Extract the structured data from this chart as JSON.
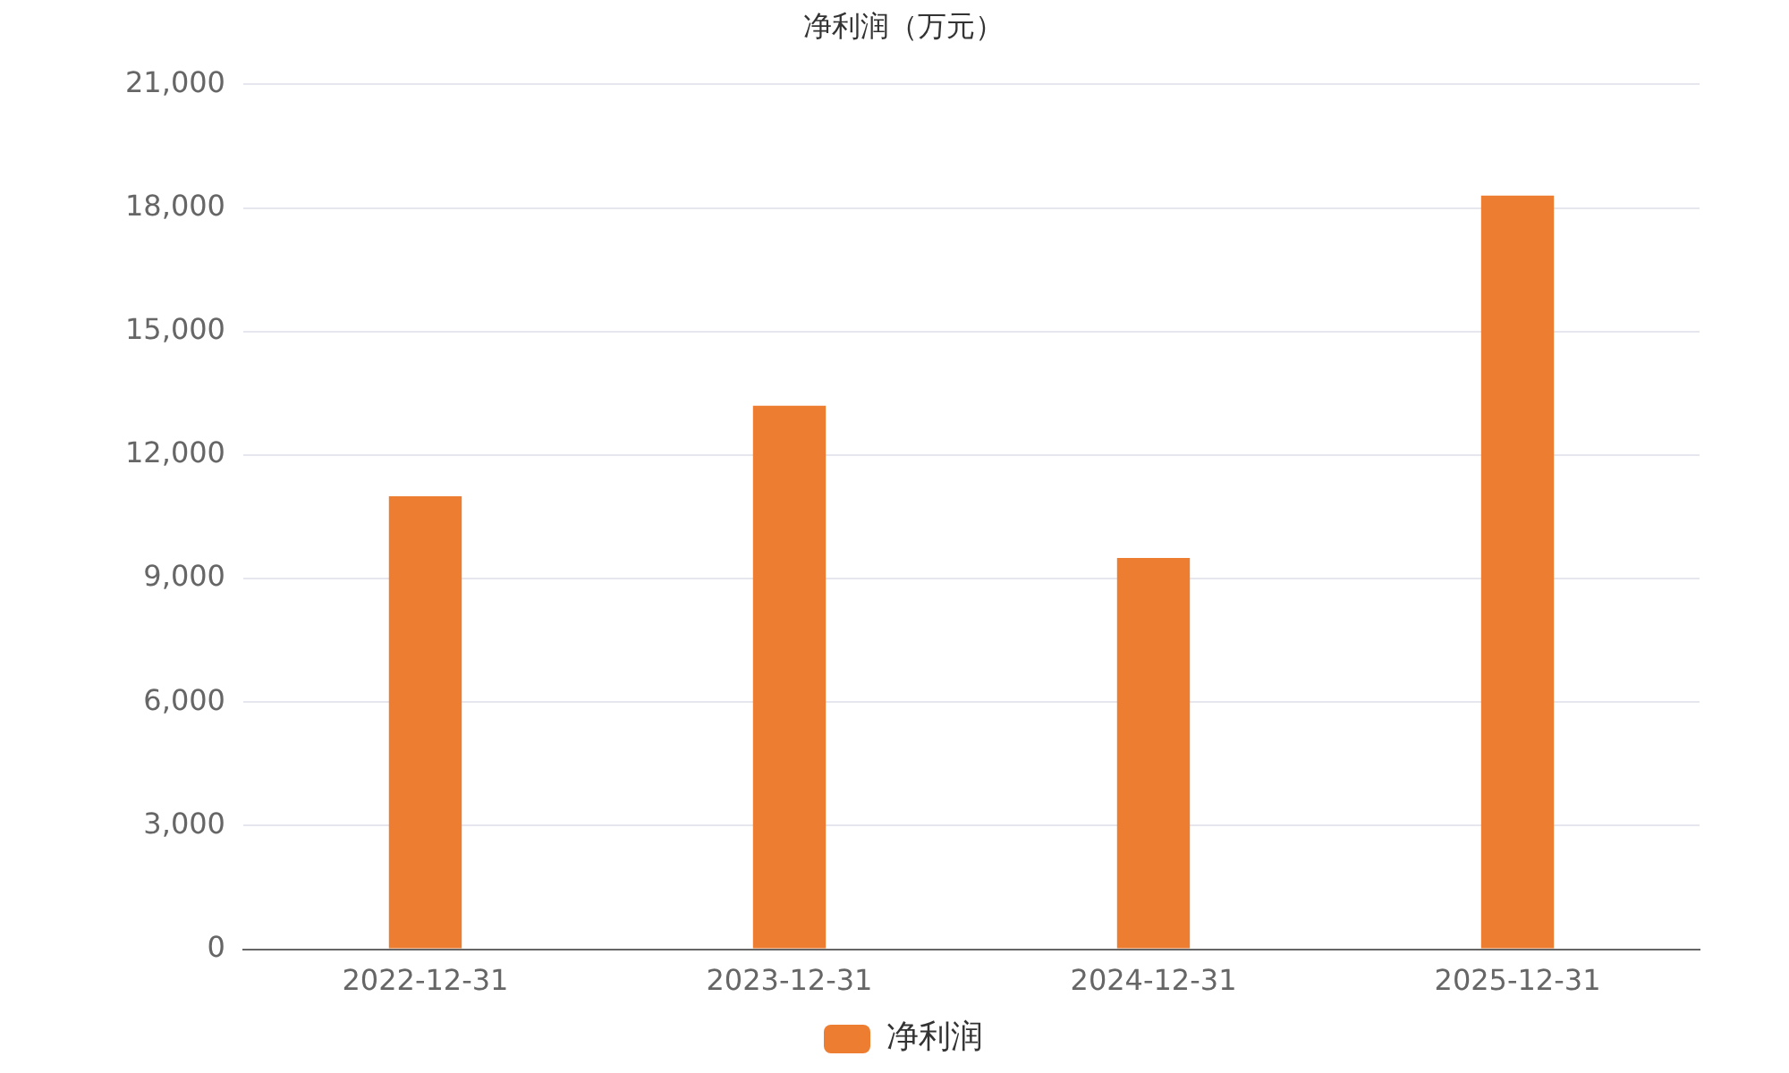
{
  "chart_data": {
    "type": "bar",
    "title": "净利润（万元）",
    "categories": [
      "2022-12-31",
      "2023-12-31",
      "2024-12-31",
      "2025-12-31"
    ],
    "series": [
      {
        "name": "净利润",
        "color": "#ed7d31",
        "values": [
          11000,
          13200,
          9500,
          18300
        ]
      }
    ],
    "ylim": [
      0,
      21000
    ],
    "yticks": [
      0,
      {
        "value": 3000,
        "label": "3,000"
      },
      {
        "value": 6000,
        "label": "6,000"
      },
      {
        "value": 9000,
        "label": "9,000"
      },
      {
        "value": 12000,
        "label": "12,000"
      },
      {
        "value": 15000,
        "label": "15,000"
      },
      {
        "value": 18000,
        "label": "18,000"
      },
      {
        "value": 21000,
        "label": "21,000"
      }
    ],
    "grid": "y",
    "legend": "bottom"
  }
}
